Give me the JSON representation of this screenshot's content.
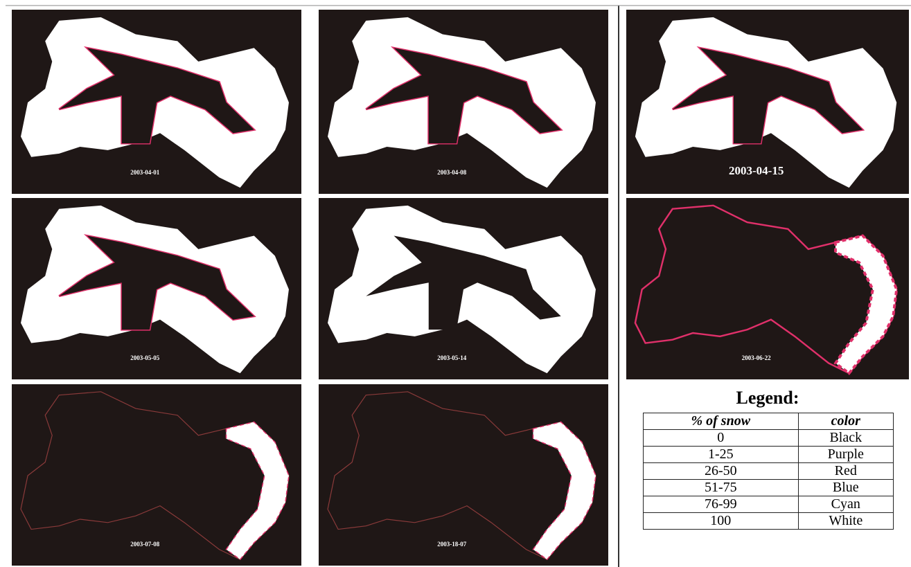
{
  "panels": [
    {
      "label": "2003-04-01"
    },
    {
      "label": "2003-04-08"
    },
    {
      "label": "2003-04-15"
    },
    {
      "label": "2003-05-05"
    },
    {
      "label": "2003-05-14"
    },
    {
      "label": "2003-06-22"
    },
    {
      "label": "2003-07-08"
    },
    {
      "label": "2003-18-07"
    }
  ],
  "legend": {
    "title": "Legend:",
    "columns": [
      "% of snow",
      "color"
    ],
    "rows": [
      [
        "0",
        "Black"
      ],
      [
        "1-25",
        "Purple"
      ],
      [
        "26-50",
        "Red"
      ],
      [
        "51-75",
        "Blue"
      ],
      [
        "76-99",
        "Cyan"
      ],
      [
        "100",
        "White"
      ]
    ]
  }
}
